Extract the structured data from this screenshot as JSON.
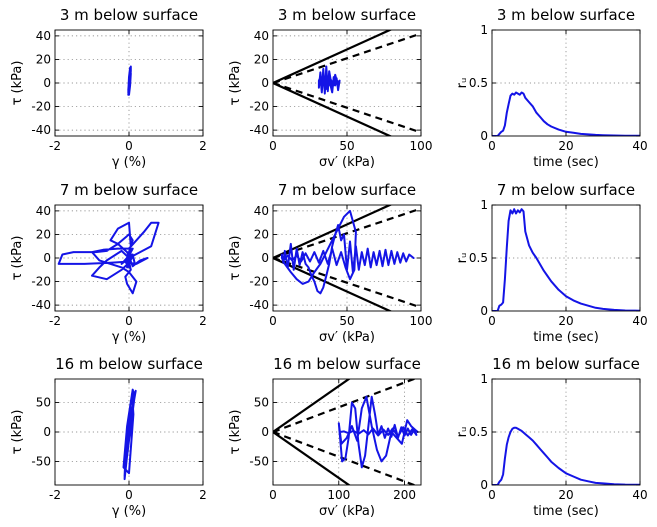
{
  "colors": {
    "series": "#1414e6",
    "axes": "#000000",
    "grid": "#777777"
  },
  "chart_data": [
    {
      "type": "line",
      "title": "3 m below surface",
      "xlabel": "γ (%)",
      "ylabel": "τ (kPa)",
      "xlim": [
        -2,
        2
      ],
      "ylim": [
        -45,
        45
      ],
      "xticks": [
        -2,
        0,
        2
      ],
      "yticks": [
        40,
        20,
        0,
        -20,
        -40
      ],
      "grid": true,
      "series": [
        {
          "x": [
            -0.02,
            0.0,
            0.02,
            0.05,
            0.05,
            0.03,
            0.0,
            -0.02,
            0.0,
            0.03,
            0.05,
            0.03,
            0.0,
            -0.02
          ],
          "y": [
            -10,
            -3,
            4,
            10,
            14,
            10,
            2,
            -6,
            -10,
            -2,
            8,
            13,
            5,
            -8
          ]
        }
      ]
    },
    {
      "type": "line",
      "title": "3 m below surface",
      "xlabel": "σv′ (kPa)",
      "ylabel": "τ (kPa)",
      "xlim": [
        0,
        100
      ],
      "ylim": [
        -45,
        45
      ],
      "xticks": [
        0,
        50,
        100
      ],
      "yticks": [
        40,
        20,
        0,
        -20,
        -40
      ],
      "grid": true,
      "envelopes": [
        {
          "style": "solid",
          "slope": 0.57
        },
        {
          "style": "solid",
          "slope": -0.57
        },
        {
          "style": "dashed",
          "slope": 0.42
        },
        {
          "style": "dashed",
          "slope": -0.42
        }
      ],
      "series": [
        {
          "x": [
            44,
            42,
            40,
            38,
            36,
            34,
            33,
            32,
            31,
            31,
            32,
            33,
            34,
            35,
            36,
            37,
            38,
            40,
            42,
            44,
            45,
            44,
            43,
            42,
            41,
            40,
            38,
            37,
            36,
            35,
            34,
            33,
            32,
            33,
            35,
            37,
            39,
            41,
            43,
            44
          ],
          "y": [
            1,
            4,
            -3,
            6,
            -5,
            8,
            -8,
            5,
            2,
            -4,
            9,
            -6,
            12,
            -9,
            14,
            -7,
            10,
            -5,
            7,
            -3,
            2,
            -6,
            4,
            -2,
            5,
            -8,
            3,
            -4,
            6,
            -7,
            9,
            -5,
            2,
            -3,
            4,
            -4,
            3,
            -2,
            2,
            0
          ]
        }
      ]
    },
    {
      "type": "line",
      "title": "3 m below surface",
      "xlabel": "time (sec)",
      "ylabel": "rᵤ",
      "xlim": [
        0,
        40
      ],
      "ylim": [
        0,
        1
      ],
      "xticks": [
        0,
        20,
        40
      ],
      "yticks": [
        1,
        0.5,
        0
      ],
      "grid": true,
      "series": [
        {
          "x": [
            0,
            1.5,
            2,
            2.5,
            3,
            3.5,
            4,
            4.5,
            5,
            5.5,
            6,
            6.5,
            7,
            7.5,
            8,
            8.5,
            9,
            10,
            11,
            12,
            13,
            14,
            15,
            16,
            18,
            20,
            22,
            24,
            26,
            28,
            30,
            33,
            36,
            40
          ],
          "y": [
            0,
            0,
            0.02,
            0.04,
            0.05,
            0.1,
            0.22,
            0.3,
            0.38,
            0.4,
            0.39,
            0.41,
            0.4,
            0.39,
            0.41,
            0.4,
            0.36,
            0.32,
            0.28,
            0.22,
            0.18,
            0.14,
            0.11,
            0.09,
            0.06,
            0.04,
            0.03,
            0.02,
            0.015,
            0.01,
            0.008,
            0.005,
            0.003,
            0.002
          ]
        }
      ]
    },
    {
      "type": "line",
      "title": "7 m below surface",
      "xlabel": "γ (%)",
      "ylabel": "τ (kPa)",
      "xlim": [
        -2,
        2
      ],
      "ylim": [
        -45,
        45
      ],
      "xticks": [
        -2,
        0,
        2
      ],
      "yticks": [
        40,
        20,
        0,
        -20,
        -40
      ],
      "grid": true,
      "series": [
        {
          "x": [
            -0.02,
            0.0,
            0.05,
            0.1,
            0.0,
            -0.3,
            -0.6,
            -0.9,
            -1.5,
            -1.8,
            -1.9,
            -1.2,
            -0.5,
            0.0,
            0.05,
            -0.1,
            -0.05,
            0.1,
            0.2,
            0.0,
            -0.2,
            -0.5,
            -0.8,
            -1.0,
            -0.7,
            -0.3,
            0.0,
            0.2,
            0.4,
            0.6,
            0.8,
            0.6,
            0.3,
            0.0,
            -0.2,
            0.0,
            0.1,
            0.0,
            -0.1,
            0.0,
            0.05,
            -0.05,
            0.0,
            0.1,
            0.0,
            -0.2,
            -0.4,
            -0.6,
            -0.8,
            -1.0,
            -0.6,
            -0.2,
            0.0,
            0.2,
            0.5,
            0.3,
            0.1,
            -0.05,
            -0.3,
            -0.5,
            -0.3,
            0.0,
            0.05,
            -0.05,
            0.05,
            0.0,
            0.1,
            0.15,
            0.1,
            0.0
          ],
          "y": [
            0,
            5,
            10,
            15,
            20,
            12,
            6,
            5,
            5,
            3,
            -5,
            -5,
            -4,
            -3,
            -10,
            -16,
            -22,
            -30,
            -20,
            -12,
            -8,
            -5,
            -2,
            5,
            7,
            8,
            8,
            15,
            22,
            30,
            30,
            10,
            5,
            0,
            -5,
            2,
            8,
            4,
            -3,
            -8,
            6,
            -6,
            4,
            2,
            0,
            6,
            2,
            -2,
            -8,
            -15,
            -18,
            -10,
            -4,
            -5,
            0,
            -2,
            -7,
            5,
            12,
            15,
            25,
            30,
            10,
            -8,
            8,
            -5,
            2,
            -4,
            3,
            0
          ]
        }
      ]
    },
    {
      "type": "line",
      "title": "7 m below surface",
      "xlabel": "σv′ (kPa)",
      "ylabel": "τ (kPa)",
      "xlim": [
        0,
        100
      ],
      "ylim": [
        -45,
        45
      ],
      "xticks": [
        0,
        50,
        100
      ],
      "yticks": [
        40,
        20,
        0,
        -20,
        -40
      ],
      "grid": true,
      "envelopes": [
        {
          "style": "solid",
          "slope": 0.57
        },
        {
          "style": "solid",
          "slope": -0.57
        },
        {
          "style": "dashed",
          "slope": 0.42
        },
        {
          "style": "dashed",
          "slope": -0.42
        }
      ],
      "series": [
        {
          "x": [
            95,
            92,
            90,
            88,
            86,
            84,
            82,
            80,
            78,
            76,
            74,
            72,
            70,
            68,
            66,
            64,
            62,
            60,
            58,
            56,
            54,
            52,
            50,
            48,
            46,
            44,
            42,
            40,
            38,
            36,
            34,
            32,
            30,
            28,
            26,
            24,
            22,
            20,
            18,
            16,
            14,
            12,
            10,
            8,
            7,
            6,
            6,
            8,
            12,
            16,
            20,
            24,
            28,
            32,
            36,
            40,
            44,
            48,
            52,
            56,
            55,
            52,
            49,
            46,
            43,
            40,
            37,
            34,
            31,
            28,
            25,
            22,
            19,
            16,
            13,
            10,
            8,
            6
          ],
          "y": [
            0,
            3,
            -3,
            4,
            -4,
            5,
            -5,
            6,
            -6,
            7,
            -7,
            6,
            -6,
            5,
            -8,
            8,
            -6,
            5,
            -10,
            10,
            -12,
            14,
            -10,
            20,
            15,
            28,
            20,
            10,
            -5,
            -15,
            -25,
            -30,
            -28,
            -20,
            -15,
            -8,
            -5,
            5,
            -6,
            8,
            -10,
            12,
            -8,
            6,
            -4,
            3,
            0,
            -5,
            -12,
            -18,
            -22,
            -20,
            -12,
            -5,
            5,
            15,
            25,
            35,
            40,
            22,
            -10,
            -18,
            -8,
            5,
            -6,
            8,
            -5,
            6,
            -4,
            5,
            -3,
            4,
            -3,
            2,
            -2,
            2,
            -1,
            0
          ]
        }
      ]
    },
    {
      "type": "line",
      "title": "7 m below surface",
      "xlabel": "time (sec)",
      "ylabel": "rᵤ",
      "xlim": [
        0,
        40
      ],
      "ylim": [
        0,
        1
      ],
      "xticks": [
        0,
        20,
        40
      ],
      "yticks": [
        1,
        0.5,
        0
      ],
      "grid": true,
      "series": [
        {
          "x": [
            0,
            1.5,
            2,
            2.5,
            3,
            3.5,
            4,
            4.5,
            5,
            5.5,
            6,
            6.5,
            7,
            7.5,
            8,
            8.5,
            9,
            10,
            11,
            12,
            13,
            14,
            15,
            16,
            18,
            20,
            22,
            24,
            26,
            28,
            30,
            33,
            36,
            40
          ],
          "y": [
            0,
            0,
            0.05,
            0.06,
            0.08,
            0.3,
            0.6,
            0.85,
            0.95,
            0.92,
            0.96,
            0.92,
            0.95,
            0.93,
            0.96,
            0.94,
            0.75,
            0.62,
            0.55,
            0.5,
            0.44,
            0.38,
            0.33,
            0.28,
            0.2,
            0.14,
            0.1,
            0.07,
            0.05,
            0.03,
            0.02,
            0.01,
            0.005,
            0.003
          ]
        }
      ]
    },
    {
      "type": "line",
      "title": "16 m below surface",
      "xlabel": "γ (%)",
      "ylabel": "τ (kPa)",
      "xlim": [
        -2,
        2
      ],
      "ylim": [
        -90,
        90
      ],
      "xticks": [
        -2,
        0,
        2
      ],
      "yticks": [
        50,
        0,
        -50
      ],
      "grid": true,
      "series": [
        {
          "x": [
            -0.05,
            0.1,
            0.18,
            0.05,
            -0.1,
            -0.12,
            0.0,
            0.15,
            0.1,
            -0.05,
            -0.15,
            0.0,
            0.12,
            0.08,
            -0.08,
            -0.12,
            0.02,
            0.14,
            0.05,
            -0.1,
            -0.05,
            0.1,
            0.0
          ],
          "y": [
            -20,
            40,
            70,
            50,
            -40,
            -80,
            -10,
            60,
            72,
            10,
            -60,
            -70,
            30,
            65,
            -20,
            -75,
            -5,
            55,
            30,
            -50,
            -30,
            20,
            0
          ]
        }
      ]
    },
    {
      "type": "line",
      "title": "16 m below surface",
      "xlabel": "σv′ (kPa)",
      "ylabel": "τ (kPa)",
      "xlim": [
        0,
        225
      ],
      "ylim": [
        -90,
        90
      ],
      "xticks": [
        0,
        100,
        200
      ],
      "yticks": [
        50,
        0,
        -50
      ],
      "grid": true,
      "envelopes": [
        {
          "style": "solid",
          "slope": 0.78
        },
        {
          "style": "solid",
          "slope": -0.78
        },
        {
          "style": "dashed",
          "slope": 0.42
        },
        {
          "style": "dashed",
          "slope": -0.42
        }
      ],
      "series": [
        {
          "x": [
            220,
            215,
            210,
            205,
            200,
            195,
            190,
            185,
            180,
            175,
            170,
            165,
            160,
            155,
            150,
            145,
            140,
            135,
            130,
            125,
            120,
            115,
            110,
            105,
            102,
            100,
            104,
            112,
            120,
            128,
            135,
            142,
            150,
            158,
            165,
            172,
            180,
            188,
            196,
            204,
            210,
            215,
            218,
            212,
            205,
            198,
            190,
            182,
            175,
            168,
            160,
            152,
            145,
            138,
            130,
            122,
            115,
            108,
            102
          ],
          "y": [
            0,
            5,
            -5,
            6,
            -6,
            8,
            -10,
            12,
            -8,
            6,
            -10,
            10,
            -5,
            30,
            60,
            10,
            -40,
            -60,
            -20,
            40,
            50,
            -10,
            -45,
            -50,
            -10,
            15,
            -20,
            -10,
            10,
            -15,
            40,
            60,
            10,
            -30,
            -50,
            -40,
            0,
            -10,
            -20,
            20,
            10,
            5,
            -5,
            5,
            -6,
            8,
            -8,
            6,
            -5,
            4,
            -6,
            6,
            -4,
            3,
            -3,
            2,
            -2,
            1,
            0
          ]
        }
      ]
    },
    {
      "type": "line",
      "title": "16 m below surface",
      "xlabel": "time (sec)",
      "ylabel": "rᵤ",
      "xlim": [
        0,
        40
      ],
      "ylim": [
        0,
        1
      ],
      "xticks": [
        0,
        20,
        40
      ],
      "yticks": [
        1,
        0.5,
        0
      ],
      "grid": true,
      "series": [
        {
          "x": [
            0,
            1.5,
            2,
            2.5,
            3,
            3.5,
            4,
            4.5,
            5,
            5.5,
            6,
            6.5,
            7,
            7.5,
            8,
            9,
            10,
            11,
            12,
            13,
            14,
            15,
            16,
            18,
            20,
            22,
            24,
            26,
            28,
            30,
            33,
            36,
            40
          ],
          "y": [
            0,
            0,
            0.03,
            0.05,
            0.1,
            0.25,
            0.38,
            0.45,
            0.5,
            0.53,
            0.54,
            0.54,
            0.53,
            0.52,
            0.51,
            0.48,
            0.45,
            0.42,
            0.38,
            0.34,
            0.3,
            0.26,
            0.22,
            0.16,
            0.11,
            0.08,
            0.05,
            0.035,
            0.02,
            0.015,
            0.008,
            0.004,
            0.002
          ]
        }
      ]
    }
  ]
}
